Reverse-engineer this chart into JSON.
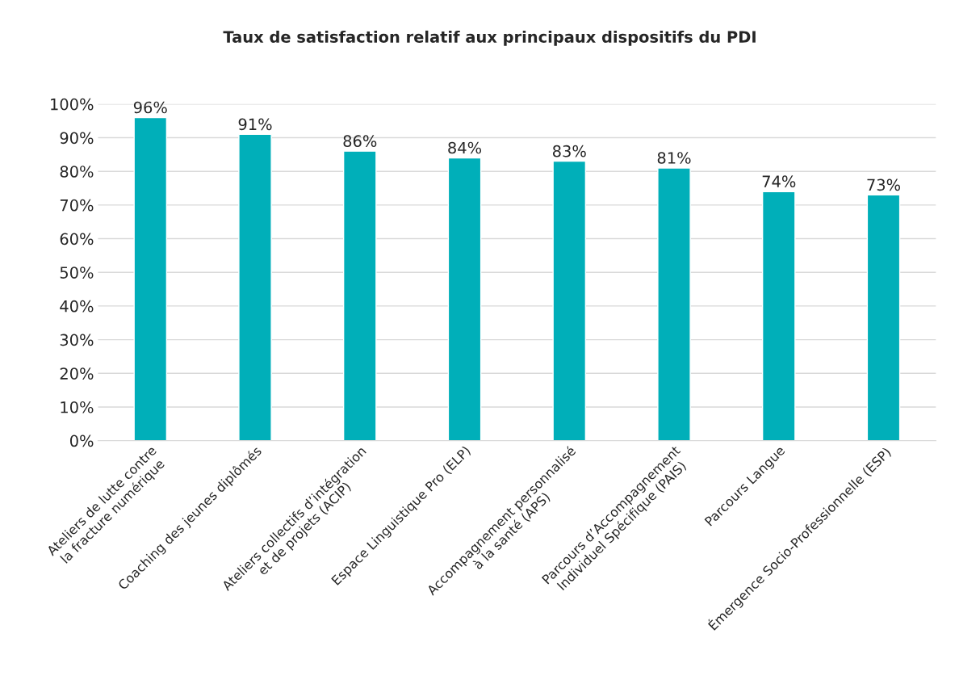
{
  "chart_data": {
    "type": "bar",
    "title": "Taux de satisfaction relatif aux principaux dispositifs du PDI",
    "categories": [
      "Ateliers de lutte contre\nla fracture numérique",
      "Coaching des jeunes diplômés",
      "Ateliers collectifs d’intégration\net de projets (ACIP)",
      "Espace Linguistique Pro (ELP)",
      "Accompagnement personnalisé\nà la santé (APS)",
      "Parcours d’Accompagnement\nIndividuel Spécifique (PAIS)",
      "Parcours Langue",
      "Émergence Socio-Professionnelle (ESP)"
    ],
    "values": [
      96,
      91,
      86,
      84,
      83,
      81,
      74,
      73
    ],
    "value_labels": [
      "96%",
      "91%",
      "86%",
      "84%",
      "83%",
      "81%",
      "74%",
      "73%"
    ],
    "color": "#00afb9",
    "ylim": [
      0,
      100
    ],
    "yticks": [
      {
        "value": 0,
        "label": "0%"
      },
      {
        "value": 10,
        "label": "10%"
      },
      {
        "value": 20,
        "label": "20%"
      },
      {
        "value": 30,
        "label": "30%"
      },
      {
        "value": 40,
        "label": "40%"
      },
      {
        "value": 50,
        "label": "50%"
      },
      {
        "value": 60,
        "label": "60%"
      },
      {
        "value": 70,
        "label": "70%"
      },
      {
        "value": 80,
        "label": "80%"
      },
      {
        "value": 90,
        "label": "90%"
      },
      {
        "value": 100,
        "label": "100%"
      }
    ],
    "grid": "y"
  }
}
